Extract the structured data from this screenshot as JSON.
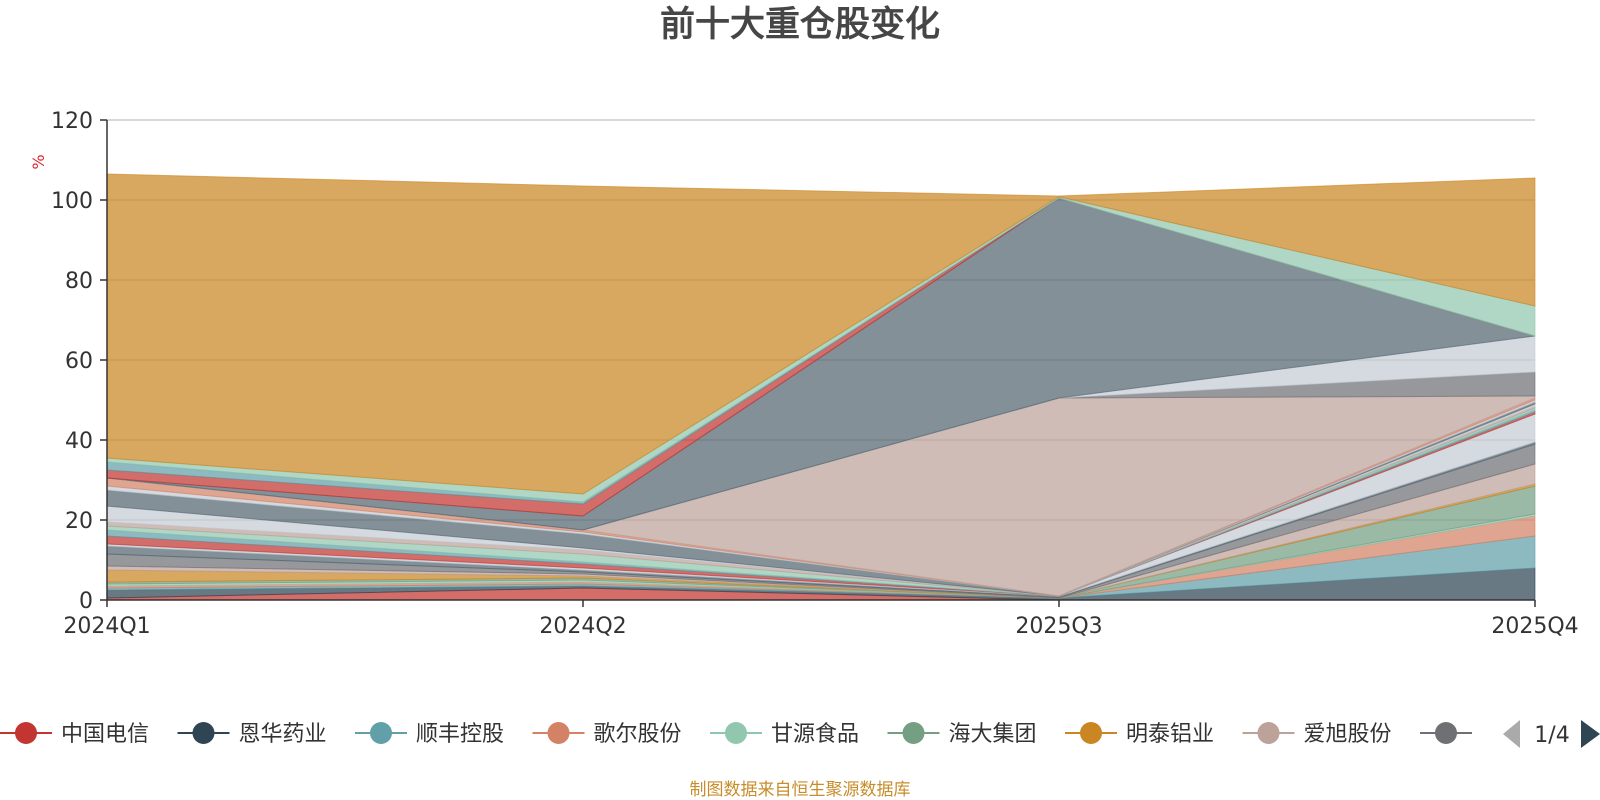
{
  "chart_data": {
    "type": "area",
    "stacked": true,
    "title": "前十大重仓股变化",
    "y_unit": "%",
    "ylim": [
      0,
      120
    ],
    "y_ticks": [
      "0",
      "20",
      "40",
      "60",
      "80",
      "100",
      "120"
    ],
    "categories": [
      "2024Q1",
      "2024Q2",
      "2025Q3",
      "2025Q4"
    ],
    "grid": true,
    "legend_position": "bottom",
    "series": [
      {
        "name": "中国电信",
        "color": "#c23531",
        "values": [
          0.5,
          3,
          0,
          0
        ]
      },
      {
        "name": "恩华药业",
        "color": "#2f4554",
        "values": [
          2,
          0.5,
          0.5,
          8
        ]
      },
      {
        "name": "顺丰控股",
        "color": "#61a0a8",
        "values": [
          0.5,
          0.5,
          0,
          8
        ]
      },
      {
        "name": "歌尔股份",
        "color": "#d48265",
        "values": [
          0.5,
          0.5,
          0,
          5
        ]
      },
      {
        "name": "甘源食品",
        "color": "#91c7ae",
        "values": [
          0.5,
          0.5,
          0,
          0.5
        ]
      },
      {
        "name": "海大集团",
        "color": "#749f83",
        "values": [
          0.5,
          0.5,
          0,
          7
        ]
      },
      {
        "name": "明泰铝业",
        "color": "#ca8622",
        "values": [
          3,
          0.5,
          0,
          0.5
        ]
      },
      {
        "name": "爱旭股份",
        "color": "#bda29a",
        "values": [
          1,
          0.5,
          0,
          5
        ]
      },
      {
        "name": "",
        "color": "#6e7074",
        "values": [
          3,
          0.5,
          0.2,
          5
        ]
      },
      {
        "name": "",
        "color": "#546570",
        "values": [
          2,
          0.5,
          0.2,
          0.5
        ]
      },
      {
        "name": "",
        "color": "#c4ccd3",
        "values": [
          0.5,
          0.5,
          0.1,
          7
        ]
      },
      {
        "name": "",
        "color": "#c23531",
        "values": [
          2,
          1,
          0,
          0.5
        ]
      },
      {
        "name": "",
        "color": "#61a0a8",
        "values": [
          1.5,
          0.5,
          0,
          0.5
        ]
      },
      {
        "name": "",
        "color": "#91c7ae",
        "values": [
          1,
          2,
          0,
          0.5
        ]
      },
      {
        "name": "",
        "color": "#bda29a",
        "values": [
          1,
          1,
          0,
          0.5
        ]
      },
      {
        "name": "",
        "color": "#c4ccd3",
        "values": [
          4,
          0.5,
          0,
          0.5
        ]
      },
      {
        "name": "",
        "color": "#546570",
        "values": [
          4,
          3.5,
          0,
          0.5
        ]
      },
      {
        "name": "",
        "color": "#c4ccd3",
        "values": [
          1,
          0.5,
          0,
          0.5
        ]
      },
      {
        "name": "",
        "color": "#d48265",
        "values": [
          2,
          0.5,
          0,
          0.5
        ]
      },
      {
        "name": "",
        "color": "#bda29a",
        "values": [
          0,
          0,
          49.5,
          0.5
        ]
      },
      {
        "name": "",
        "color": "#6e7074",
        "values": [
          0,
          0,
          0,
          6
        ]
      },
      {
        "name": "",
        "color": "#c4ccd3",
        "values": [
          0,
          0,
          0,
          9
        ]
      },
      {
        "name": "",
        "color": "#546570",
        "values": [
          0,
          3.5,
          50,
          0
        ]
      },
      {
        "name": "",
        "color": "#c23531",
        "values": [
          2,
          3,
          0,
          0
        ]
      },
      {
        "name": "",
        "color": "#61a0a8",
        "values": [
          2,
          0.5,
          0,
          0
        ]
      },
      {
        "name": "",
        "color": "#91c7ae",
        "values": [
          1,
          2,
          0.3,
          7.5
        ]
      },
      {
        "name": "",
        "color": "#ca8622",
        "values": [
          71,
          77,
          0.2,
          32
        ]
      }
    ]
  },
  "legend": {
    "items": [
      {
        "label": "中国电信",
        "color": "#c23531"
      },
      {
        "label": "恩华药业",
        "color": "#2f4554"
      },
      {
        "label": "顺丰控股",
        "color": "#61a0a8"
      },
      {
        "label": "歌尔股份",
        "color": "#d48265"
      },
      {
        "label": "甘源食品",
        "color": "#91c7ae"
      },
      {
        "label": "海大集团",
        "color": "#749f83"
      },
      {
        "label": "明泰铝业",
        "color": "#ca8622"
      },
      {
        "label": "爱旭股份",
        "color": "#bda29a"
      },
      {
        "label": "",
        "color": "#6e7074"
      }
    ],
    "page_indicator": "1/4"
  },
  "source_note": "制图数据来自恒生聚源数据库",
  "colors": {
    "axis": "#333333",
    "grid": "#cccccc",
    "pager_active": "#2f4554",
    "pager_inactive": "#aaaaaa"
  }
}
